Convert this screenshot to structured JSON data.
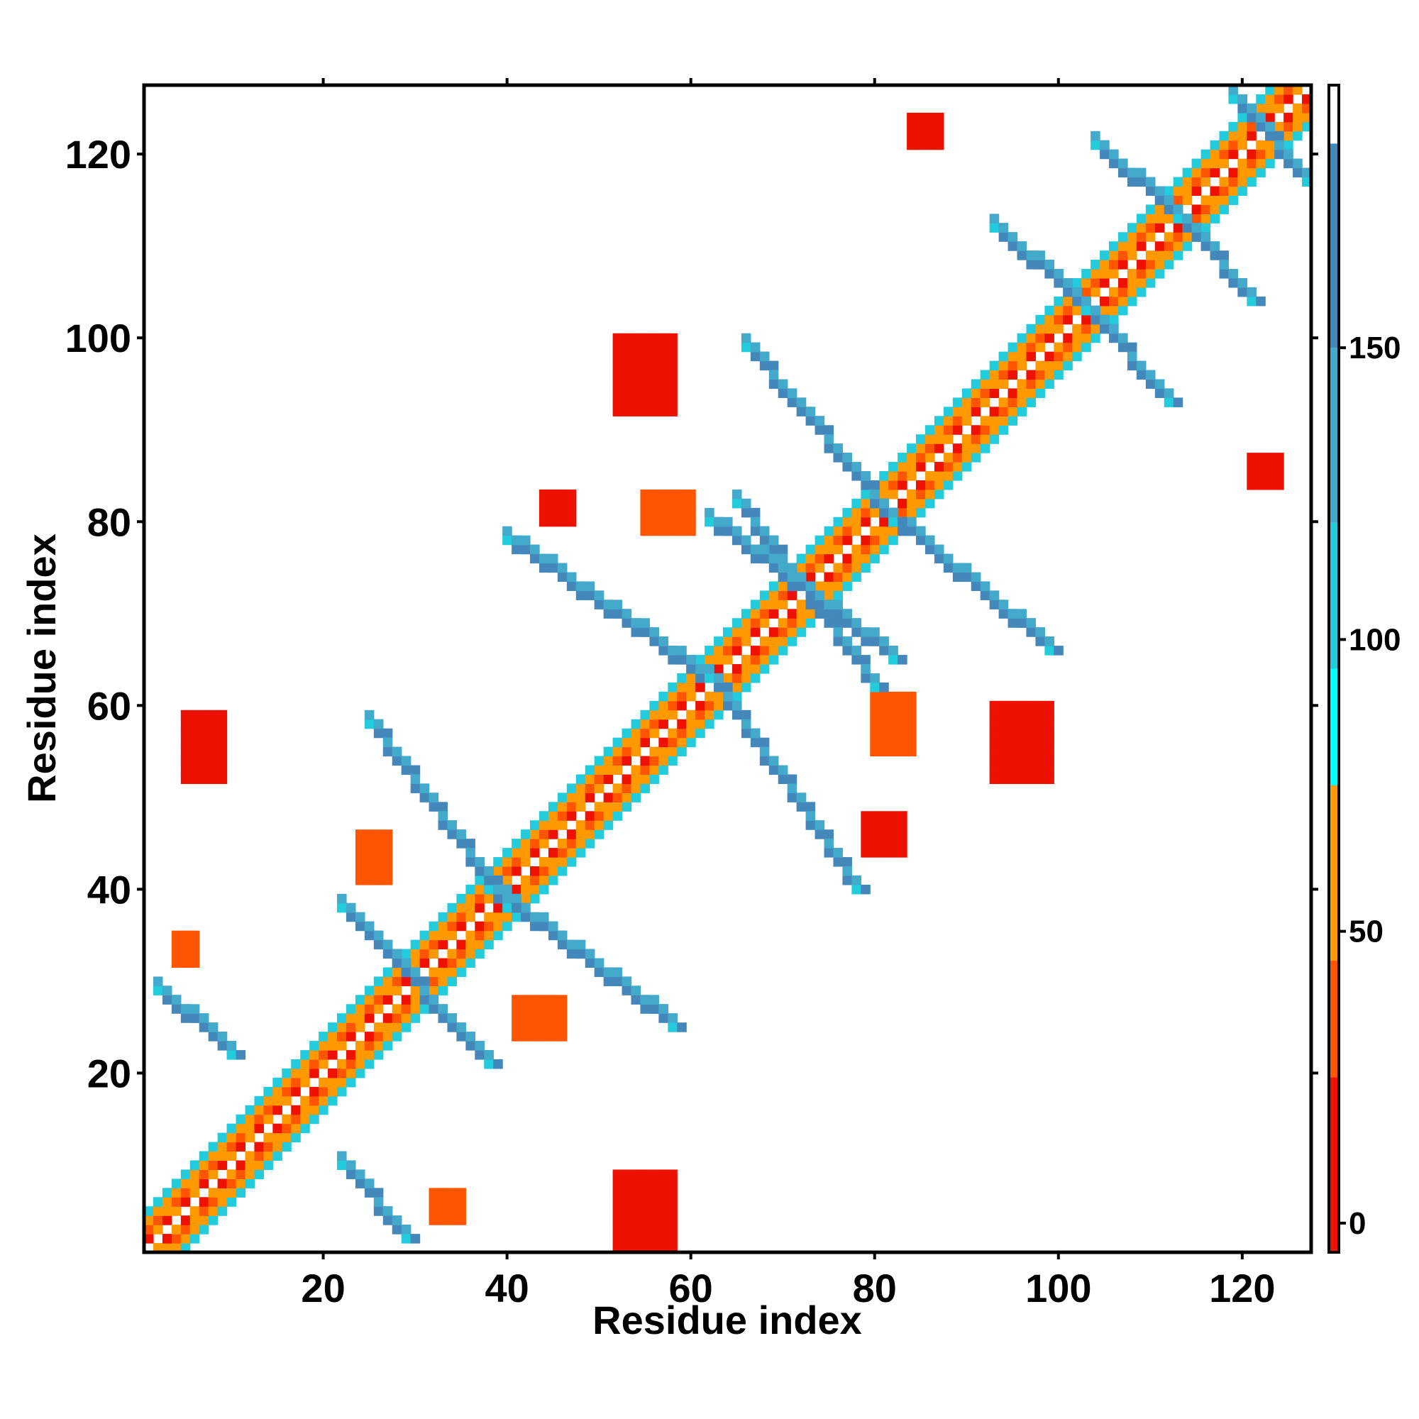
{
  "chart_data": {
    "type": "heatmap",
    "xlabel": "Residue index",
    "ylabel": "Residue index",
    "xlim": [
      1,
      127
    ],
    "ylim": [
      1,
      127
    ],
    "x_ticks": [
      20,
      40,
      60,
      80,
      100,
      120
    ],
    "y_ticks": [
      20,
      40,
      60,
      80,
      100,
      120
    ],
    "colorbar": {
      "ticks": [
        0,
        50,
        100,
        150
      ],
      "range": [
        -5,
        195
      ],
      "bands": [
        {
          "from": -5,
          "to": 25,
          "color": "#ee1100"
        },
        {
          "from": 25,
          "to": 45,
          "color": "#ff5500"
        },
        {
          "from": 45,
          "to": 75,
          "color": "#ff9900"
        },
        {
          "from": 75,
          "to": 95,
          "color": "#00ffff"
        },
        {
          "from": 95,
          "to": 120,
          "color": "#22ccdd"
        },
        {
          "from": 120,
          "to": 150,
          "color": "#44aacc"
        },
        {
          "from": 150,
          "to": 185,
          "color": "#4488bb"
        },
        {
          "from": 185,
          "to": 195,
          "color": "#ffffff"
        }
      ]
    },
    "contacts": {
      "parallel_near_diagonal": [
        {
          "from": 1,
          "to": 127,
          "width": 4,
          "value": 10
        }
      ],
      "blobs": [
        {
          "x": [
            5,
            9
          ],
          "y": [
            52,
            59
          ],
          "value": 8
        },
        {
          "x": [
            52,
            58
          ],
          "y": [
            1,
            9
          ],
          "value": 8
        },
        {
          "x": [
            93,
            99
          ],
          "y": [
            52,
            60
          ],
          "value": 8
        },
        {
          "x": [
            52,
            58
          ],
          "y": [
            92,
            100
          ],
          "value": 8
        },
        {
          "x": [
            44,
            47
          ],
          "y": [
            80,
            83
          ],
          "value": 20
        },
        {
          "x": [
            79,
            83
          ],
          "y": [
            44,
            48
          ],
          "value": 20
        },
        {
          "x": [
            80,
            84
          ],
          "y": [
            55,
            61
          ],
          "value": 40
        },
        {
          "x": [
            55,
            60
          ],
          "y": [
            79,
            83
          ],
          "value": 40
        },
        {
          "x": [
            4,
            6
          ],
          "y": [
            32,
            35
          ],
          "value": 30
        },
        {
          "x": [
            32,
            35
          ],
          "y": [
            4,
            7
          ],
          "value": 30
        },
        {
          "x": [
            24,
            27
          ],
          "y": [
            41,
            46
          ],
          "value": 40
        },
        {
          "x": [
            41,
            46
          ],
          "y": [
            24,
            28
          ],
          "value": 40
        },
        {
          "x": [
            121,
            124
          ],
          "y": [
            84,
            87
          ],
          "value": 20
        },
        {
          "x": [
            84,
            87
          ],
          "y": [
            121,
            124
          ],
          "value": 20
        }
      ],
      "antiparallel_strands": [
        {
          "x": [
            2,
            10
          ],
          "y": [
            22,
            29
          ],
          "value": 160
        },
        {
          "x": [
            22,
            29
          ],
          "y": [
            2,
            10
          ],
          "value": 160
        },
        {
          "x": [
            22,
            38
          ],
          "y": [
            21,
            38
          ],
          "value": 150
        },
        {
          "x": [
            38,
            58
          ],
          "y": [
            25,
            40
          ],
          "value": 150
        },
        {
          "x": [
            25,
            40
          ],
          "y": [
            38,
            58
          ],
          "value": 150
        },
        {
          "x": [
            40,
            63
          ],
          "y": [
            62,
            78
          ],
          "value": 150
        },
        {
          "x": [
            62,
            78
          ],
          "y": [
            40,
            63
          ],
          "value": 150
        },
        {
          "x": [
            65,
            80
          ],
          "y": [
            62,
            82
          ],
          "value": 150
        },
        {
          "x": [
            62,
            82
          ],
          "y": [
            65,
            80
          ],
          "value": 150
        },
        {
          "x": [
            80,
            99
          ],
          "y": [
            66,
            82
          ],
          "value": 150
        },
        {
          "x": [
            66,
            82
          ],
          "y": [
            80,
            99
          ],
          "value": 150
        },
        {
          "x": [
            93,
            103
          ],
          "y": [
            103,
            112
          ],
          "value": 150
        },
        {
          "x": [
            103,
            112
          ],
          "y": [
            93,
            103
          ],
          "value": 150
        },
        {
          "x": [
            104,
            113
          ],
          "y": [
            113,
            121
          ],
          "value": 150
        },
        {
          "x": [
            113,
            121
          ],
          "y": [
            104,
            113
          ],
          "value": 150
        },
        {
          "x": [
            119,
            127
          ],
          "y": [
            117,
            126
          ],
          "value": 150
        }
      ]
    }
  }
}
